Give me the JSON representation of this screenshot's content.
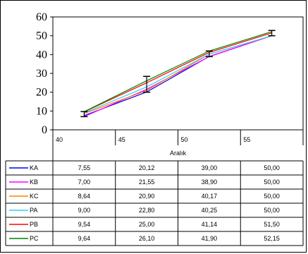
{
  "chart_data": {
    "type": "line",
    "xlabel": "Aralık",
    "ylabel": "",
    "title": "",
    "ylim": [
      0,
      60
    ],
    "yticks": [
      0,
      10,
      20,
      30,
      40,
      50,
      60
    ],
    "x_ticks": [
      "40",
      "45",
      "50",
      "55"
    ],
    "categories": [
      "40",
      "45",
      "50",
      "55"
    ],
    "series": [
      {
        "name": "KA",
        "color": "#0000ff",
        "values": [
          7.55,
          20.12,
          39.0,
          50.0
        ],
        "labels": [
          "7,55",
          "20,12",
          "39,00",
          "50,00"
        ]
      },
      {
        "name": "KB",
        "color": "#ff00ff",
        "values": [
          7.0,
          21.55,
          38.9,
          50.0
        ],
        "labels": [
          "7,00",
          "21,55",
          "38,90",
          "50,00"
        ]
      },
      {
        "name": "KC",
        "color": "#ff8000",
        "values": [
          8.64,
          20.9,
          40.17,
          50.0
        ],
        "labels": [
          "8,64",
          "20,90",
          "40,17",
          "50,00"
        ]
      },
      {
        "name": "PA",
        "color": "#33ccff",
        "values": [
          9.0,
          22.8,
          40.25,
          50.0
        ],
        "labels": [
          "9,00",
          "22,80",
          "40,25",
          "50,00"
        ]
      },
      {
        "name": "PB",
        "color": "#ff0000",
        "values": [
          9.54,
          25.0,
          41.14,
          51.5
        ],
        "labels": [
          "9,54",
          "25,00",
          "41,14",
          "51,50"
        ]
      },
      {
        "name": "PC",
        "color": "#008000",
        "values": [
          9.64,
          26.1,
          41.9,
          52.15
        ],
        "labels": [
          "9,64",
          "26,10",
          "41,90",
          "52,15"
        ]
      }
    ],
    "error_bars": [
      {
        "low": 7.0,
        "high": 9.7
      },
      {
        "low": 20.0,
        "high": 28.4
      },
      {
        "low": 38.9,
        "high": 41.9
      },
      {
        "low": 50.0,
        "high": 52.8
      }
    ],
    "grid": false,
    "legend": "data-table-below"
  }
}
